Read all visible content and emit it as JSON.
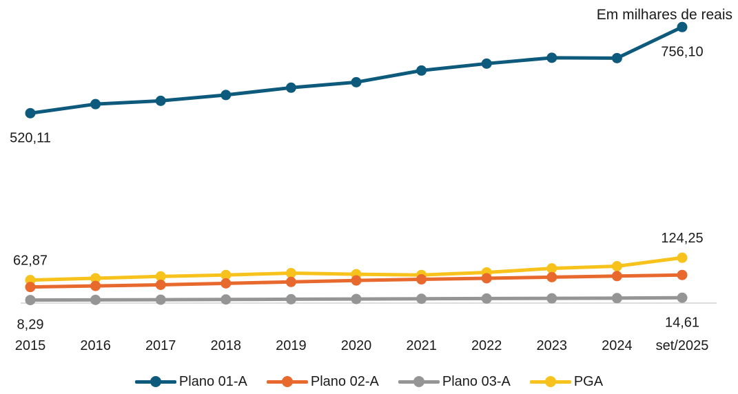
{
  "chart_data": {
    "type": "line",
    "unit_note": "Em milhares de reais",
    "categories": [
      "2015",
      "2016",
      "2017",
      "2018",
      "2019",
      "2020",
      "2021",
      "2022",
      "2023",
      "2024",
      "set/2025"
    ],
    "series": [
      {
        "name": "Plano 01-A",
        "color": "#0d5a7d",
        "values": [
          520.11,
          545,
          554,
          570,
          590,
          605,
          637,
          656,
          672,
          671,
          756.1
        ]
      },
      {
        "name": "Plano 02-A",
        "color": "#e8692d",
        "values": [
          44,
          47,
          50,
          54,
          58,
          62,
          65,
          68,
          71,
          74,
          77
        ]
      },
      {
        "name": "Plano 03-A",
        "color": "#959595",
        "values": [
          8.29,
          8.8,
          9.3,
          9.9,
          10.5,
          11.2,
          11.8,
          12.4,
          12.9,
          13.6,
          14.61
        ]
      },
      {
        "name": "PGA",
        "color": "#f7c21b",
        "values": [
          62.87,
          68,
          73,
          77,
          82,
          79,
          77,
          84,
          95,
          101,
          124.25
        ]
      }
    ],
    "data_labels": [
      {
        "text": "520,11",
        "series": 0,
        "index": 0,
        "pos": "below"
      },
      {
        "text": "756,10",
        "series": 0,
        "index": 10,
        "pos": "below"
      },
      {
        "text": "62,87",
        "series": 3,
        "index": 0,
        "pos": "above"
      },
      {
        "text": "124,25",
        "series": 3,
        "index": 10,
        "pos": "above"
      },
      {
        "text": "8,29",
        "series": 2,
        "index": 0,
        "pos": "below"
      },
      {
        "text": "14,61",
        "series": 2,
        "index": 10,
        "pos": "below"
      }
    ],
    "ylim": [
      0,
      800
    ],
    "grid": false,
    "legend": "bottom"
  }
}
